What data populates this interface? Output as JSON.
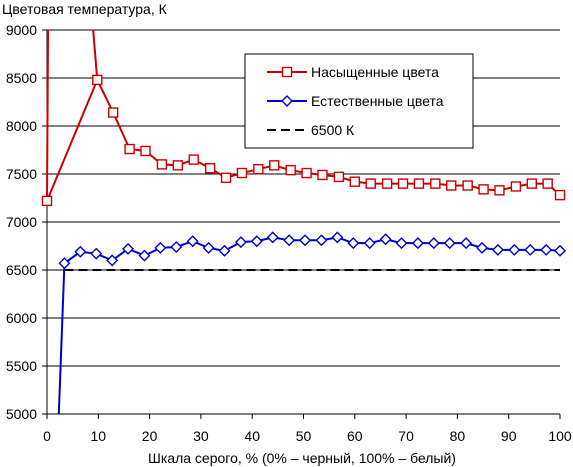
{
  "chart_data": {
    "type": "line",
    "ylabel": "Цветовая температура, К",
    "xlabel": "Шкала серого, % (0% – черный, 100% – белый)",
    "xlim": [
      0,
      100
    ],
    "ylim": [
      5000,
      9000
    ],
    "x_ticks": [
      "0",
      "10",
      "20",
      "30",
      "40",
      "50",
      "60",
      "70",
      "80",
      "90",
      "100"
    ],
    "y_ticks": [
      "5000",
      "5500",
      "6000",
      "6500",
      "7000",
      "7500",
      "8000",
      "8500",
      "9000"
    ],
    "grid": "horizontal",
    "legend_position": "top-right",
    "series": [
      {
        "name": "Насыщенные цвета",
        "color": "#cc0000",
        "marker": "square",
        "line": [
          [
            0,
            7220
          ],
          [
            0.2,
            9000
          ]
        ],
        "line2": [
          [
            9,
            9000
          ],
          [
            9.8,
            8480
          ]
        ],
        "x": [
          0,
          9.8,
          12.9,
          16.1,
          19.2,
          22.4,
          25.5,
          28.6,
          31.8,
          34.9,
          38.0,
          41.2,
          44.3,
          47.5,
          50.6,
          53.7,
          56.9,
          60.0,
          63.1,
          66.3,
          69.4,
          72.5,
          75.7,
          78.8,
          82.0,
          85.1,
          88.2,
          91.4,
          94.5,
          97.6,
          100
        ],
        "values": [
          7220,
          8480,
          8140,
          7760,
          7740,
          7600,
          7590,
          7650,
          7560,
          7460,
          7510,
          7550,
          7590,
          7540,
          7510,
          7490,
          7470,
          7420,
          7400,
          7400,
          7400,
          7400,
          7400,
          7380,
          7380,
          7340,
          7330,
          7370,
          7400,
          7400,
          7280
        ]
      },
      {
        "name": "Естественные цвета",
        "color": "#0000cc",
        "marker": "diamond",
        "line": [
          [
            2.3,
            5000
          ],
          [
            3.4,
            6570
          ]
        ],
        "x": [
          3.4,
          6.5,
          9.6,
          12.7,
          15.8,
          19.0,
          22.1,
          25.2,
          28.4,
          31.5,
          34.6,
          37.8,
          40.9,
          44.0,
          47.2,
          50.3,
          53.5,
          56.6,
          59.7,
          62.9,
          66.0,
          69.1,
          72.3,
          75.4,
          78.5,
          81.7,
          84.8,
          87.9,
          91.1,
          94.2,
          97.3,
          100
        ],
        "values": [
          6570,
          6690,
          6670,
          6600,
          6720,
          6650,
          6730,
          6740,
          6800,
          6730,
          6700,
          6790,
          6800,
          6840,
          6810,
          6810,
          6810,
          6840,
          6780,
          6780,
          6820,
          6780,
          6780,
          6780,
          6780,
          6780,
          6730,
          6710,
          6710,
          6710,
          6710,
          6700
        ]
      },
      {
        "name": "6500 К",
        "color": "#000000",
        "style": "dashed",
        "x": [
          3.4,
          100
        ],
        "values": [
          6500,
          6500
        ]
      }
    ]
  }
}
